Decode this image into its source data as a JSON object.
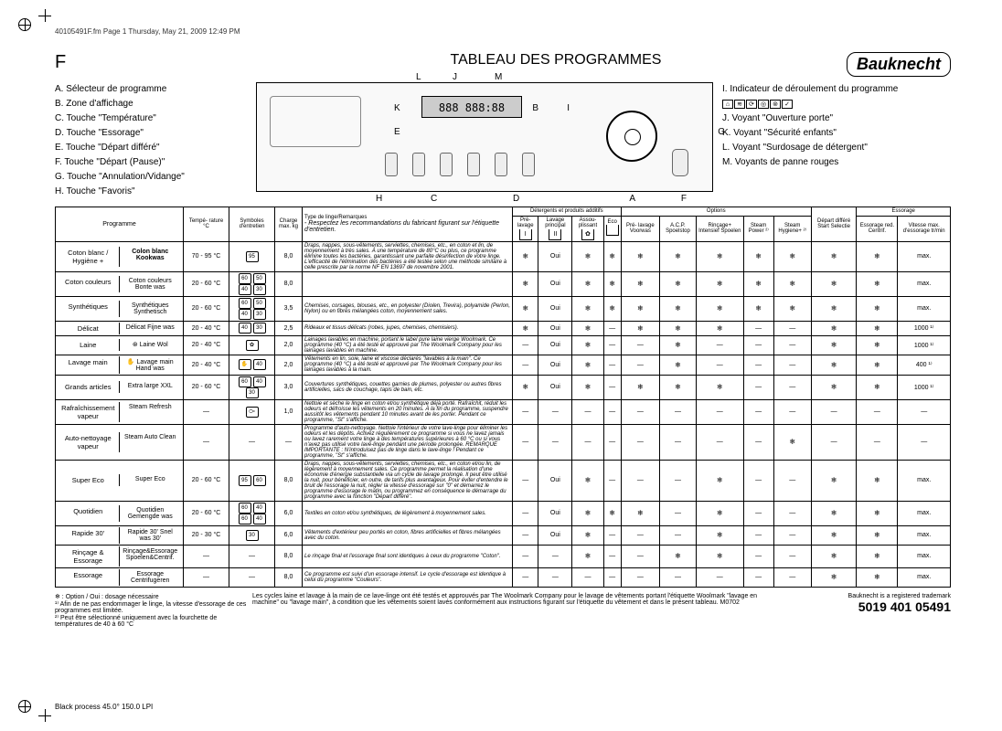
{
  "header_line": "40105491F.fm  Page 1  Thursday, May 21, 2009  12:49 PM",
  "section_letter": "F",
  "title": "TABLEAU DES PROGRAMMES",
  "brand": "Bauknecht",
  "legend_left": [
    "A. Sélecteur de programme",
    "B. Zone d'affichage",
    "C. Touche \"Température\"",
    "D. Touche \"Essorage\"",
    "E. Touche \"Départ différé\"",
    "F. Touche \"Départ (Pause)\"",
    "G. Touche \"Annulation/Vidange\"",
    "H. Touche \"Favoris\""
  ],
  "legend_right": [
    {
      "k": "I.",
      "t": "Indicateur de déroulement du programme"
    },
    {
      "k": "",
      "t": "",
      "icons": true
    },
    {
      "k": "J.",
      "t": "Voyant \"Ouverture porte\""
    },
    {
      "k": "K.",
      "t": "Voyant \"Sécurité enfants\""
    },
    {
      "k": "L.",
      "t": "Voyant \"Surdosage de détergent\""
    },
    {
      "k": "M.",
      "t": "Voyants de panne rouges"
    }
  ],
  "panel_letters": {
    "J": "J",
    "L": "L",
    "M": "M",
    "K": "K",
    "I": "I",
    "B": "B",
    "E": "E",
    "G": "G",
    "H": "H",
    "C": "C",
    "D": "D",
    "A": "A",
    "F": "F"
  },
  "table": {
    "head": {
      "programme": "Programme",
      "temp": "Tempé-\nrature\n°C",
      "symboles": "Symboles\nd'entretien",
      "charge": "Charge\nmax.\nkg",
      "remarques_top": "Type de linge/Remarques",
      "remarques_sub": "- Respectez les recommandations du fabricant figurant sur l'étiquette d'entretien.",
      "detergents": "Détergents et produits additifs",
      "det_cols": [
        "Pré-\nlavage",
        "Lavage\nprincipal",
        "Assou-\nplissant",
        "Eco"
      ],
      "options": "Options",
      "opt_cols": [
        "Pré-\nlavage\nVoorwas",
        "A.C.P.\nSpoelstop",
        "Rinçage+\nIntensief\nSpoelen",
        "Steam\nPower ²⁾",
        "Steam\nHygiene+ ²⁾"
      ],
      "depart": "Départ\ndifféré\nStart\nSelectie",
      "essorage": "Essorage",
      "ess_cols": [
        "Essorage\nred.\nCentrif.",
        "Vitesse\nmax.\nd'essorage\ntr/min"
      ]
    },
    "rows": [
      {
        "p1": "Coton blanc / Hygiène +",
        "p2": "Colon blanc Kookwas",
        "bold": true,
        "temp": "70 - 95 °C",
        "sym": [
          "95"
        ],
        "charge": "8,0",
        "rem": "Draps, nappes, sous-vêtements, serviettes, chemises, etc., en coton et lin, de moyennement à très sales. À une température de 80°C ou plus, ce programme élimine toutes les bactéries, garantissant une parfaite désinfection de votre linge. L'efficacité de l'élimination des bactéries a été testée selon une méthode similaire à celle prescrite par la norme NF EN 13697 de novembre 2001.",
        "det": [
          "snow",
          "Oui",
          "snow",
          "snow"
        ],
        "opt": [
          "snow",
          "snow",
          "snow",
          "snow",
          "snow"
        ],
        "dep": "snow",
        "ess": [
          "snow",
          "max."
        ]
      },
      {
        "p1": "Coton couleurs",
        "p2": "Coton couleurs Bonte was",
        "temp": "20 - 60 °C",
        "sym": [
          "60",
          "50",
          "40",
          "30"
        ],
        "charge": "8,0",
        "rem": "",
        "det": [
          "snow",
          "Oui",
          "snow",
          "snow"
        ],
        "opt": [
          "snow",
          "snow",
          "snow",
          "snow",
          "snow"
        ],
        "dep": "snow",
        "ess": [
          "snow",
          "max."
        ]
      },
      {
        "p1": "Synthétiques",
        "p2": "Synthétiques Synthetisch",
        "temp": "20 - 60 °C",
        "sym": [
          "60",
          "50",
          "40",
          "30"
        ],
        "charge": "3,5",
        "rem": "Chemises, corsages, blouses, etc., en polyester (Diolen, Trevira), polyamide (Perlon, Nylon) ou en fibres mélangées coton, moyennement sales.",
        "det": [
          "snow",
          "Oui",
          "snow",
          "snow"
        ],
        "opt": [
          "snow",
          "snow",
          "snow",
          "snow",
          "snow"
        ],
        "dep": "snow",
        "ess": [
          "snow",
          "max."
        ]
      },
      {
        "p1": "Délicat",
        "p2": "Délicat Fijne was",
        "temp": "20 - 40 °C",
        "sym": [
          "40",
          "30"
        ],
        "charge": "2,5",
        "rem": "Rideaux et tissus délicats (robes, jupes, chemises, chemisiers).",
        "det": [
          "snow",
          "Oui",
          "snow",
          "dash"
        ],
        "opt": [
          "snow",
          "snow",
          "snow",
          "dash",
          "dash"
        ],
        "dep": "snow",
        "ess": [
          "snow",
          "1000 ¹⁾"
        ]
      },
      {
        "p1": "Laine",
        "p2": "Laine Wol",
        "wool": true,
        "temp": "20 - 40 °C",
        "sym": [
          "✿"
        ],
        "charge": "2,0",
        "rem": "Lainages lavables en machine, portant le label pure laine vierge Woolmark. Ce programme (40 °C) a été testé et approuvé par The Woolmark Company pour les lainages lavables en machine.",
        "det": [
          "dash",
          "Oui",
          "snow",
          "dash"
        ],
        "opt": [
          "dash",
          "snow",
          "dash",
          "dash",
          "dash"
        ],
        "dep": "snow",
        "ess": [
          "snow",
          "1000 ¹⁾"
        ]
      },
      {
        "p1": "Lavage main",
        "p2": "Lavage main Hand was",
        "hand": true,
        "temp": "20 - 40 °C",
        "sym": [
          "✋",
          "40"
        ],
        "charge": "2,0",
        "rem": "Vêtements en lin, soie, laine et viscose déclarés \"lavables à la main\". Ce programme (40 °C) a été testé et approuvé par The Woolmark Company pour les lainages lavables à la main.",
        "det": [
          "dash",
          "Oui",
          "snow",
          "dash"
        ],
        "opt": [
          "dash",
          "snow",
          "dash",
          "dash",
          "dash"
        ],
        "dep": "snow",
        "ess": [
          "snow",
          "400 ¹⁾"
        ]
      },
      {
        "p1": "Grands articles",
        "p2": "Extra large XXL",
        "temp": "20 - 60 °C",
        "sym": [
          "60",
          "40",
          "30"
        ],
        "charge": "3,0",
        "rem": "Couvertures synthétiques, couettes garnies de plumes, polyester ou autres fibres artificielles, sacs de couchage, tapis de bain, etc.",
        "det": [
          "snow",
          "Oui",
          "snow",
          "dash"
        ],
        "opt": [
          "snow",
          "snow",
          "snow",
          "dash",
          "dash"
        ],
        "dep": "snow",
        "ess": [
          "snow",
          "1000 ¹⁾"
        ]
      },
      {
        "p1": "Rafraîchissement vapeur",
        "p2": "Steam Refresh",
        "temp": "—",
        "sym": [
          "⧃"
        ],
        "charge": "1,0",
        "rem": "Nettoie et sèche le linge en coton et/ou synthétique déjà porté. Rafraîchit, réduit les odeurs et défroisse les vêtements en 20 minutes. À la fin du programme, suspendre aussitôt les vêtements pendant 10 minutes avant de les porter. Pendant ce programme, \"St\" s'affiche.",
        "det": [
          "dash",
          "dash",
          "dash",
          "dash"
        ],
        "opt": [
          "dash",
          "dash",
          "dash",
          "dash",
          "dash"
        ],
        "dep": "dash",
        "ess": [
          "dash",
          "—"
        ]
      },
      {
        "p1": "Auto-nettoyage vapeur",
        "p2": "Steam Auto Clean",
        "temp": "—",
        "sym": [],
        "charge": "—",
        "rem": "Programme d'auto-nettoyage. Nettoie l'intérieur de votre lave-linge pour éliminer les odeurs et les dépôts. Activez régulièrement ce programme si vous ne lavez jamais ou lavez rarement votre linge à des températures supérieures à 60 °C ou si vous n'avez pas utilisé votre lave-linge pendant une période prolongée. REMARQUE IMPORTANTE : N'introduisez pas de linge dans le lave-linge ! Pendant ce programme, \"St\" s'affiche.",
        "det": [
          "dash",
          "dash",
          "dash",
          "dash"
        ],
        "opt": [
          "dash",
          "dash",
          "dash",
          "dash",
          "snow"
        ],
        "dep": "dash",
        "ess": [
          "dash",
          "—"
        ]
      },
      {
        "p1": "Super Eco",
        "p2": "Super Eco",
        "temp": "20 - 60 °C",
        "sym": [
          "95",
          "60"
        ],
        "charge": "8,0",
        "rem": "Draps, nappes, sous-vêtements, serviettes, chemises, etc., en coton et/ou lin, de légèrement à moyennement sales. Ce programme permet la réalisation d'une économie d'énergie substantielle via un cycle de lavage prolongé. Il peut être utilisé la nuit, pour bénéficier, en outre, de tarifs plus avantageux. Pour éviter d'entendre le bruit de l'essorage la nuit, régler la vitesse d'essorage sur \"0\" et démarrez le programme d'essorage le matin, ou programmez en conséquence le démarrage du programme avec la fonction \"Départ différé\".",
        "det": [
          "dash",
          "Oui",
          "snow",
          "dash"
        ],
        "opt": [
          "dash",
          "dash",
          "snow",
          "dash",
          "dash"
        ],
        "dep": "snow",
        "ess": [
          "snow",
          "max."
        ]
      },
      {
        "p1": "Quotidien",
        "p2": "Quotidien Gemengde was",
        "temp": "20 - 60 °C",
        "sym": [
          "60",
          "40",
          "60",
          "40"
        ],
        "charge": "6,0",
        "rem": "Textiles en coton et/ou synthétiques, de légèrement à moyennement sales.",
        "det": [
          "dash",
          "Oui",
          "snow",
          "snow"
        ],
        "opt": [
          "snow",
          "dash",
          "snow",
          "dash",
          "dash"
        ],
        "dep": "snow",
        "ess": [
          "snow",
          "max."
        ]
      },
      {
        "p1": "Rapide 30'",
        "p2": "Rapide 30' Snel was 30'",
        "temp": "20 - 30 °C",
        "sym": [
          "30"
        ],
        "charge": "6,0",
        "rem": "Vêtements d'extérieur peu portés en coton, fibres artificielles et fibres mélangées avec du coton.",
        "det": [
          "dash",
          "Oui",
          "snow",
          "dash"
        ],
        "opt": [
          "dash",
          "dash",
          "snow",
          "dash",
          "dash"
        ],
        "dep": "snow",
        "ess": [
          "snow",
          "max."
        ]
      },
      {
        "p1": "Rinçage & Essorage",
        "p2": "Rinçage&Essorage Spoelen&Centrif.",
        "temp": "—",
        "sym": [],
        "charge": "8,0",
        "rem": "Le rinçage final et l'essorage final sont identiques à ceux du programme \"Coton\".",
        "det": [
          "dash",
          "dash",
          "snow",
          "dash"
        ],
        "opt": [
          "dash",
          "snow",
          "snow",
          "dash",
          "dash"
        ],
        "dep": "snow",
        "ess": [
          "snow",
          "max."
        ]
      },
      {
        "p1": "Essorage",
        "p2": "Essorage Centrifugeren",
        "temp": "—",
        "sym": [],
        "charge": "8,0",
        "rem": "Ce programme est suivi d'un essorage intensif. Le cycle d'essorage est identique à celui du programme \"Couleurs\".",
        "det": [
          "dash",
          "dash",
          "dash",
          "dash"
        ],
        "opt": [
          "dash",
          "dash",
          "dash",
          "dash",
          "dash"
        ],
        "dep": "snow",
        "ess": [
          "snow",
          "max."
        ]
      }
    ]
  },
  "footer": {
    "left": [
      "❄ : Option / Oui : dosage nécessaire",
      "¹⁾ Afin de ne pas endommager le linge, la vitesse d'essorage de ces programmes est limitée.",
      "²⁾ Peut être sélectionné uniquement avec la fourchette de températures de 40 à 60 °C"
    ],
    "mid": "Les cycles laine et lavage à la main de ce lave-linge ont été testés et approuvés par The Woolmark Company pour le lavage de vêtements portant l'étiquette Woolmark \"lavage en machine\" ou \"lavage main\", à condition que les vêtements soient lavés conformément aux instructions figurant sur l'étiquette du vêtement et dans le présent tableau.  M0702",
    "trademark": "Bauknecht is a registered trademark",
    "code": "5019 401 05491"
  },
  "black_process": "Black process 45.0° 150.0 LPI"
}
